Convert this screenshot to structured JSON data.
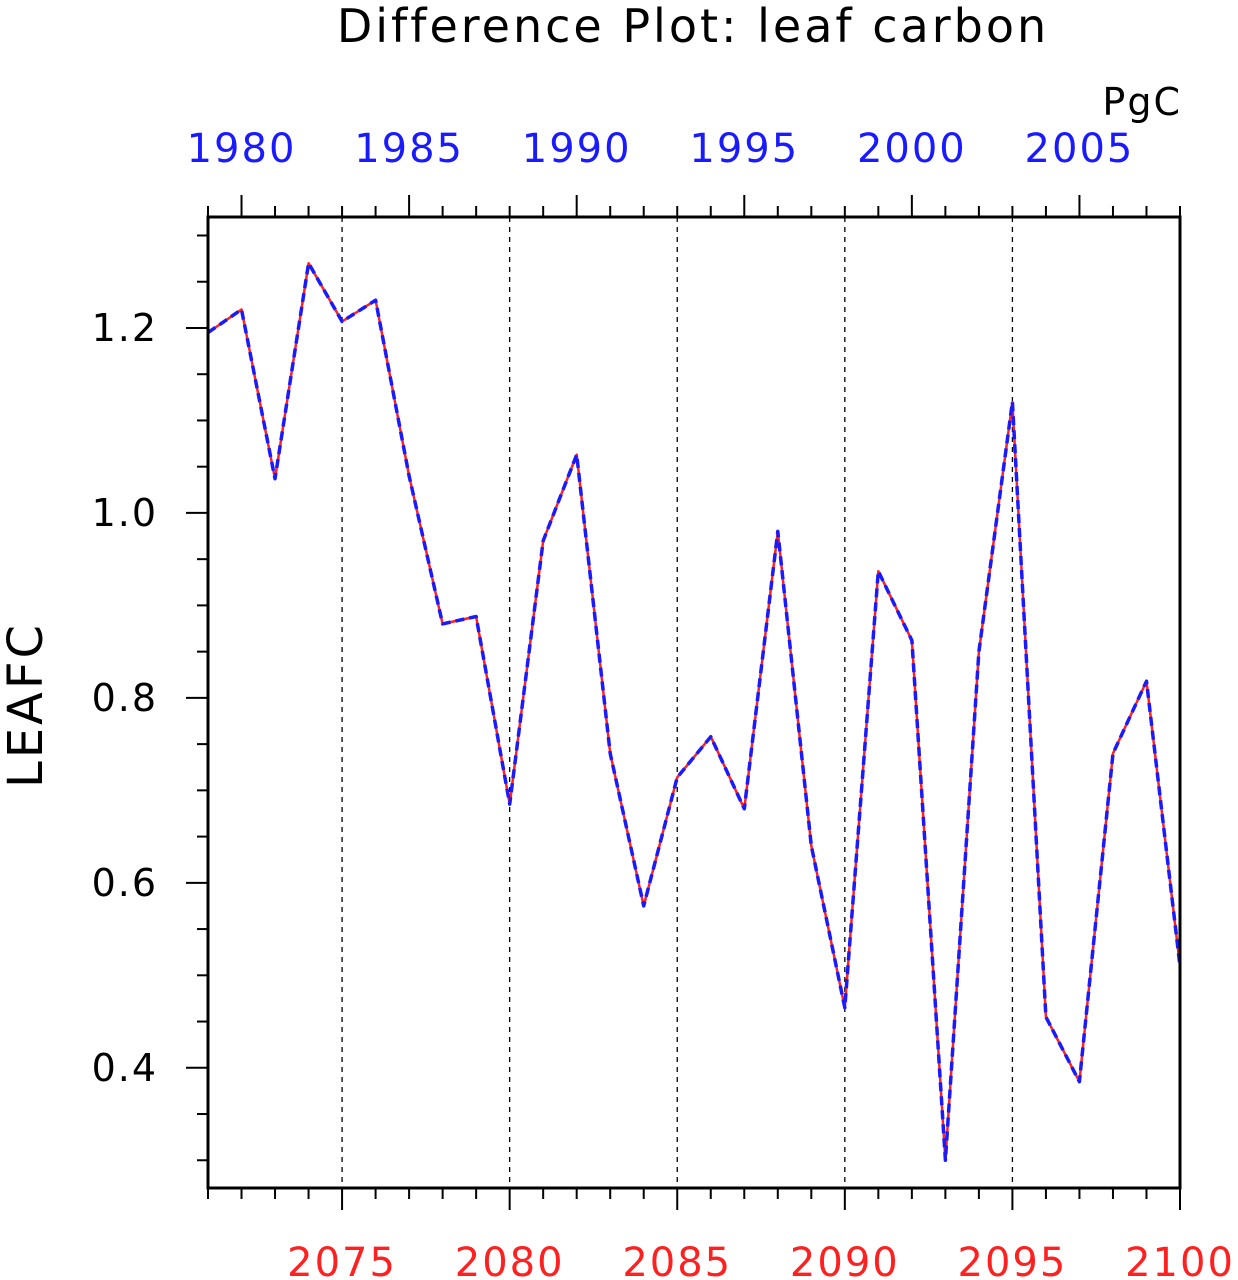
{
  "colors": {
    "top_axis": "#1a1aff",
    "bottom_axis": "#ff2020",
    "line_a": "#ff2020",
    "line_b": "#1a1aff",
    "frame": "#000000"
  },
  "chart_data": {
    "type": "line",
    "title": "Difference Plot: leaf carbon",
    "units": "PgC",
    "ylabel": "LEAFC",
    "xlabel": "",
    "grid": "vertical dashed at major ticks",
    "ylim": [
      0.27,
      1.32
    ],
    "yticks": [
      0.4,
      0.6,
      0.8,
      1.0,
      1.2
    ],
    "ytick_labels": [
      "0.4",
      "0.6",
      "0.8",
      "1.0",
      "1.2"
    ],
    "x_bottom": {
      "range": [
        2071,
        2100
      ],
      "ticks": [
        2075,
        2080,
        2085,
        2090,
        2095,
        2100
      ],
      "labels": [
        "2075",
        "2080",
        "2085",
        "2090",
        "2095",
        "2100"
      ]
    },
    "x_top": {
      "range": [
        1979,
        2008
      ],
      "ticks": [
        1980,
        1985,
        1990,
        1995,
        2000,
        2005
      ],
      "labels": [
        "1980",
        "1985",
        "1990",
        "1995",
        "2000",
        "2005"
      ]
    },
    "x": [
      2071,
      2072,
      2073,
      2074,
      2075,
      2076,
      2077,
      2078,
      2079,
      2080,
      2081,
      2082,
      2083,
      2084,
      2085,
      2086,
      2087,
      2088,
      2089,
      2090,
      2091,
      2092,
      2093,
      2094,
      2095,
      2096,
      2097,
      2098,
      2099,
      2100
    ],
    "series": [
      {
        "style": "solid",
        "values": [
          1.195,
          1.22,
          1.037,
          1.27,
          1.207,
          1.23,
          1.04,
          0.88,
          0.888,
          0.685,
          0.97,
          1.063,
          0.74,
          0.575,
          0.714,
          0.758,
          0.68,
          0.98,
          0.64,
          0.465,
          0.937,
          0.862,
          0.3,
          0.85,
          1.12,
          0.455,
          0.385,
          0.74,
          0.818,
          0.51
        ]
      },
      {
        "style": "dashed",
        "values": [
          1.195,
          1.22,
          1.037,
          1.27,
          1.207,
          1.23,
          1.04,
          0.88,
          0.888,
          0.685,
          0.97,
          1.063,
          0.74,
          0.575,
          0.714,
          0.758,
          0.68,
          0.98,
          0.64,
          0.465,
          0.937,
          0.862,
          0.3,
          0.85,
          1.12,
          0.455,
          0.385,
          0.74,
          0.818,
          0.51
        ]
      }
    ]
  }
}
